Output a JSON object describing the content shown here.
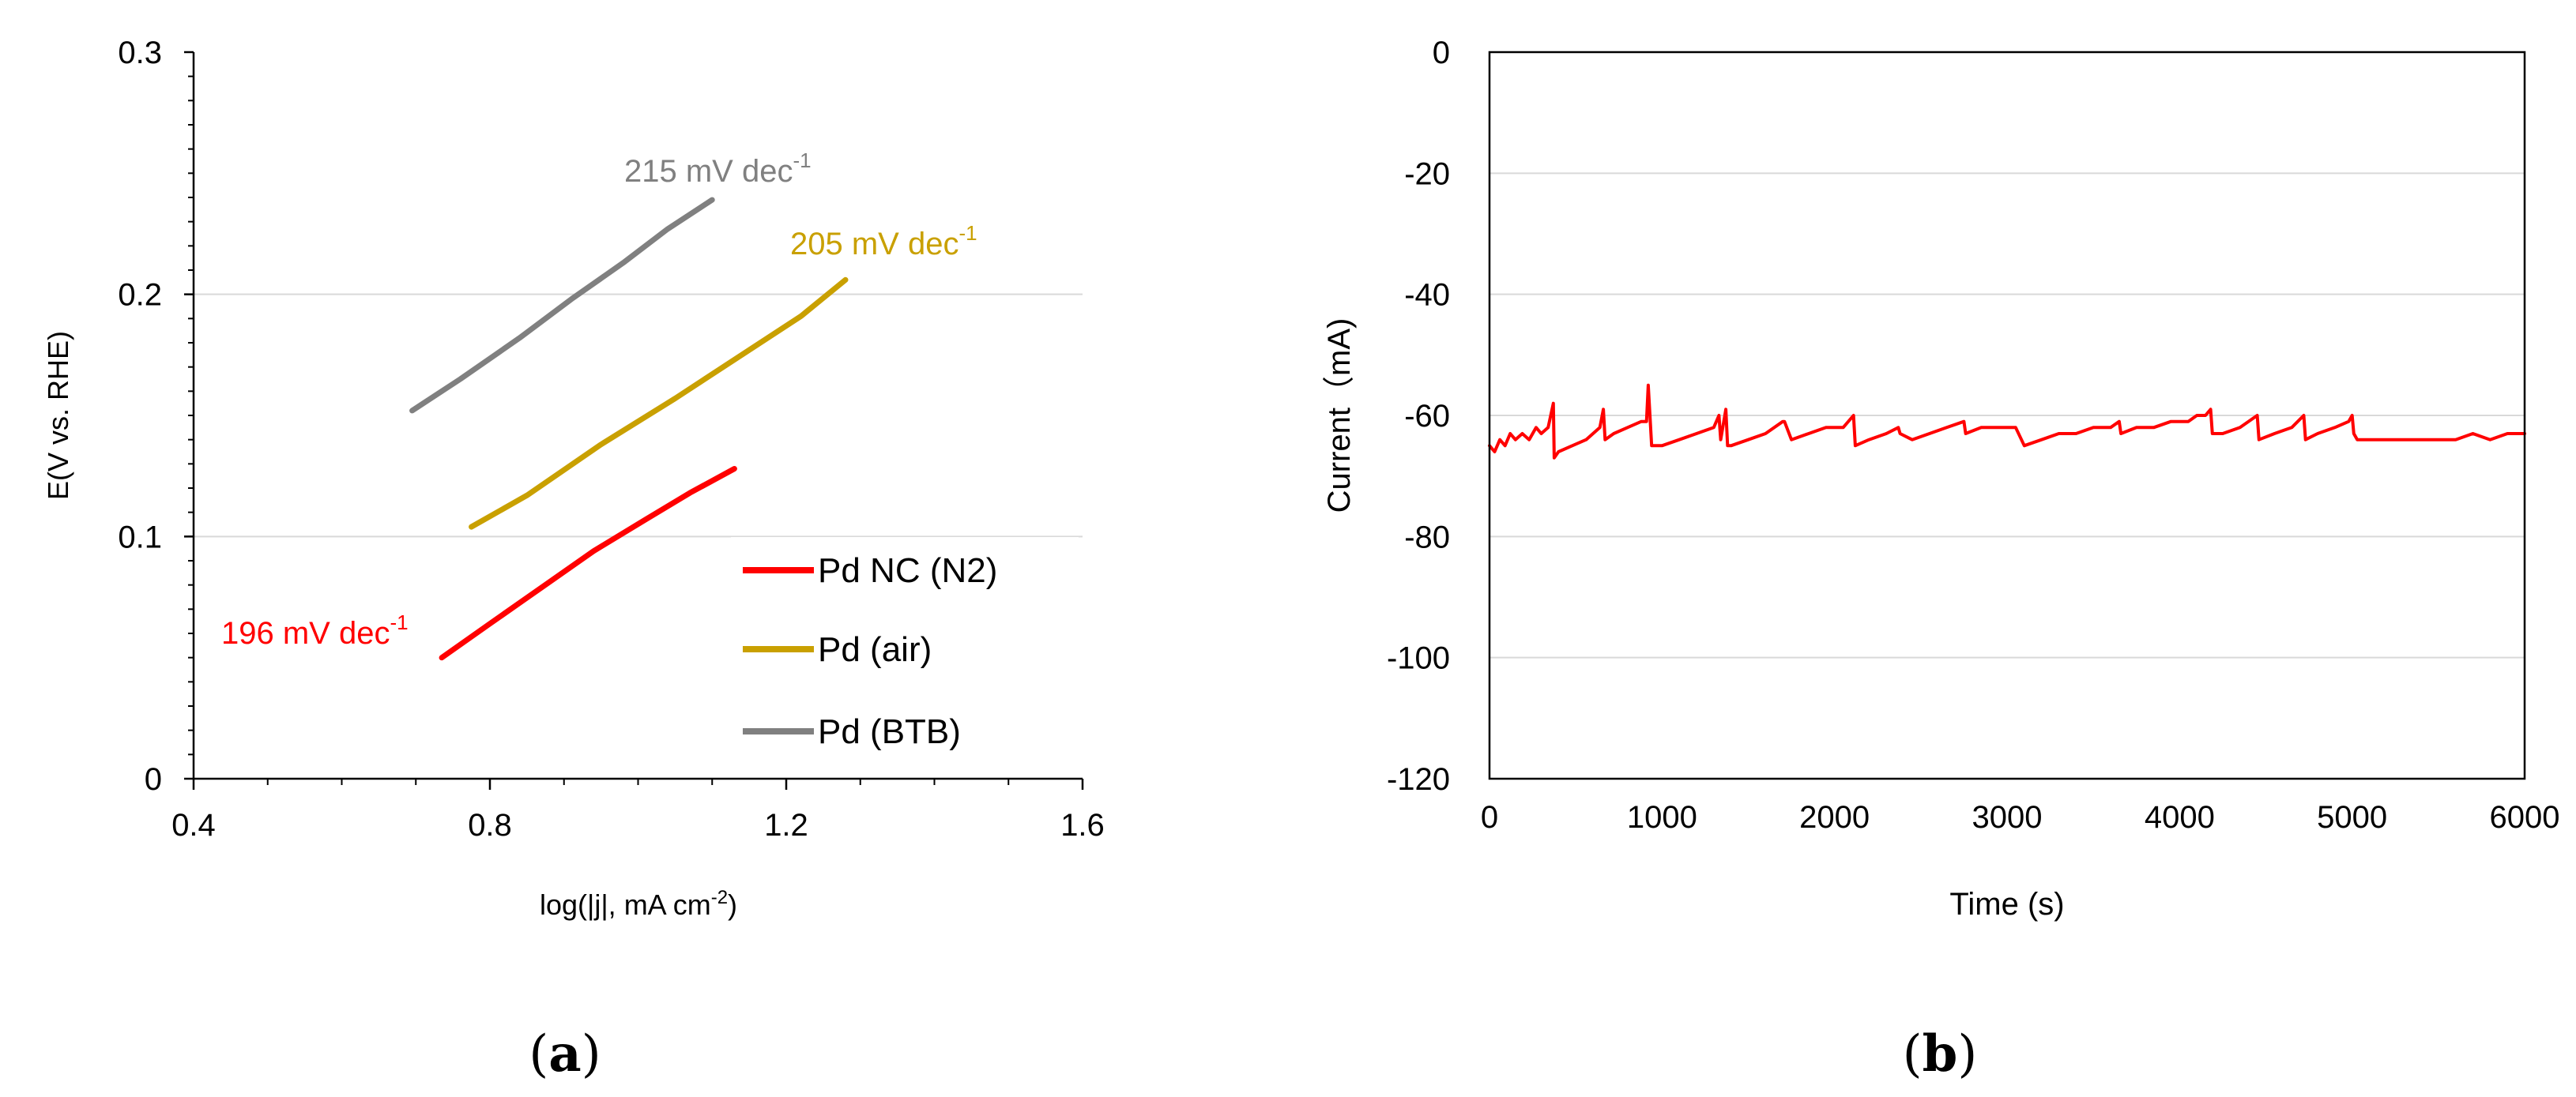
{
  "colors": {
    "n2": "#ff0000",
    "air": "#c9a000",
    "btb": "#808080",
    "axis": "#000000",
    "grid": "#d9d9d9"
  },
  "chart_data": [
    {
      "id": "a",
      "type": "line",
      "panel_label": "(a)",
      "panel_letter": "a",
      "title": "",
      "xlabel": "log(|j|, mA cm",
      "xlabel_sup": "-2",
      "xlabel_end": ")",
      "ylabel": "E(V vs. RHE)",
      "xlim": [
        0.4,
        1.6
      ],
      "ylim": [
        0,
        0.3
      ],
      "xticks": [
        0.4,
        0.8,
        1.2,
        1.6
      ],
      "xtick_labels": [
        "0.4",
        "0.8",
        "1.2",
        "1.6"
      ],
      "yticks": [
        0,
        0.1,
        0.2,
        0.3
      ],
      "ytick_labels": [
        "0",
        "0.1",
        "0.2",
        "0.3"
      ],
      "grid": "horizontal",
      "legend_position": "bottom-right",
      "series": [
        {
          "name": "Pd NC (N2)",
          "color_key": "n2",
          "x": [
            0.735,
            0.8,
            0.87,
            0.94,
            1.01,
            1.07,
            1.13
          ],
          "y": [
            0.05,
            0.064,
            0.079,
            0.094,
            0.107,
            0.118,
            0.128
          ]
        },
        {
          "name": "Pd (air)",
          "color_key": "air",
          "x": [
            0.775,
            0.85,
            0.95,
            1.05,
            1.15,
            1.22,
            1.28
          ],
          "y": [
            0.104,
            0.117,
            0.138,
            0.157,
            0.177,
            0.191,
            0.206
          ]
        },
        {
          "name": "Pd (BTB)",
          "color_key": "btb",
          "x": [
            0.695,
            0.76,
            0.84,
            0.91,
            0.98,
            1.04,
            1.1
          ],
          "y": [
            0.152,
            0.165,
            0.182,
            0.198,
            0.213,
            0.227,
            0.239
          ]
        }
      ],
      "annotations": [
        {
          "text": "215 mV dec",
          "sup": "-1",
          "color_key": "btb",
          "series": "Pd (BTB)"
        },
        {
          "text": "205 mV dec",
          "sup": "-1",
          "color_key": "air",
          "series": "Pd (air)"
        },
        {
          "text": "196 mV dec",
          "sup": "-1",
          "color_key": "n2",
          "series": "Pd NC (N2)"
        }
      ]
    },
    {
      "id": "b",
      "type": "line",
      "panel_label": "(b)",
      "panel_letter": "b",
      "title": "",
      "xlabel": "Time (s)",
      "ylabel": "Current（mA)",
      "xlim": [
        0,
        6000
      ],
      "ylim": [
        -120,
        0
      ],
      "xticks": [
        0,
        1000,
        2000,
        3000,
        4000,
        5000,
        6000
      ],
      "xtick_labels": [
        "0",
        "1000",
        "2000",
        "3000",
        "4000",
        "5000",
        "6000"
      ],
      "yticks": [
        0,
        -20,
        -40,
        -60,
        -80,
        -100,
        -120
      ],
      "ytick_labels": [
        "0",
        "-20",
        "-40",
        "-60",
        "-80",
        "-100",
        "-120"
      ],
      "grid": "horizontal",
      "series": [
        {
          "name": "Current",
          "color_key": "n2",
          "x": [
            0,
            30,
            60,
            90,
            120,
            150,
            190,
            230,
            270,
            300,
            340,
            370,
            375,
            400,
            480,
            560,
            640,
            660,
            670,
            720,
            800,
            880,
            910,
            920,
            940,
            1000,
            1100,
            1200,
            1300,
            1330,
            1340,
            1370,
            1380,
            1400,
            1500,
            1600,
            1700,
            1710,
            1750,
            1850,
            1950,
            2050,
            2110,
            2120,
            2200,
            2300,
            2370,
            2380,
            2450,
            2550,
            2650,
            2750,
            2760,
            2850,
            2950,
            3050,
            3100,
            3200,
            3300,
            3400,
            3500,
            3600,
            3650,
            3660,
            3750,
            3850,
            3950,
            4050,
            4100,
            4150,
            4180,
            4190,
            4250,
            4350,
            4450,
            4460,
            4550,
            4650,
            4720,
            4730,
            4800,
            4900,
            4980,
            5000,
            5010,
            5030,
            5100,
            5200,
            5300,
            5400,
            5500,
            5600,
            5700,
            5800,
            5900,
            6000
          ],
          "y": [
            -65,
            -66,
            -64,
            -65,
            -63,
            -64,
            -63,
            -64,
            -62,
            -63,
            -62,
            -58,
            -67,
            -66,
            -65,
            -64,
            -62,
            -59,
            -64,
            -63,
            -62,
            -61,
            -61,
            -55,
            -65,
            -65,
            -64,
            -63,
            -62,
            -60,
            -64,
            -59,
            -65,
            -65,
            -64,
            -63,
            -61,
            -61,
            -64,
            -63,
            -62,
            -62,
            -60,
            -65,
            -64,
            -63,
            -62,
            -63,
            -64,
            -63,
            -62,
            -61,
            -63,
            -62,
            -62,
            -62,
            -65,
            -64,
            -63,
            -63,
            -62,
            -62,
            -61,
            -63,
            -62,
            -62,
            -61,
            -61,
            -60,
            -60,
            -59,
            -63,
            -63,
            -62,
            -60,
            -64,
            -63,
            -62,
            -60,
            -64,
            -63,
            -62,
            -61,
            -60,
            -63,
            -64,
            -64,
            -64,
            -64,
            -64,
            -64,
            -64,
            -63,
            -64,
            -63,
            -63
          ]
        }
      ]
    }
  ]
}
